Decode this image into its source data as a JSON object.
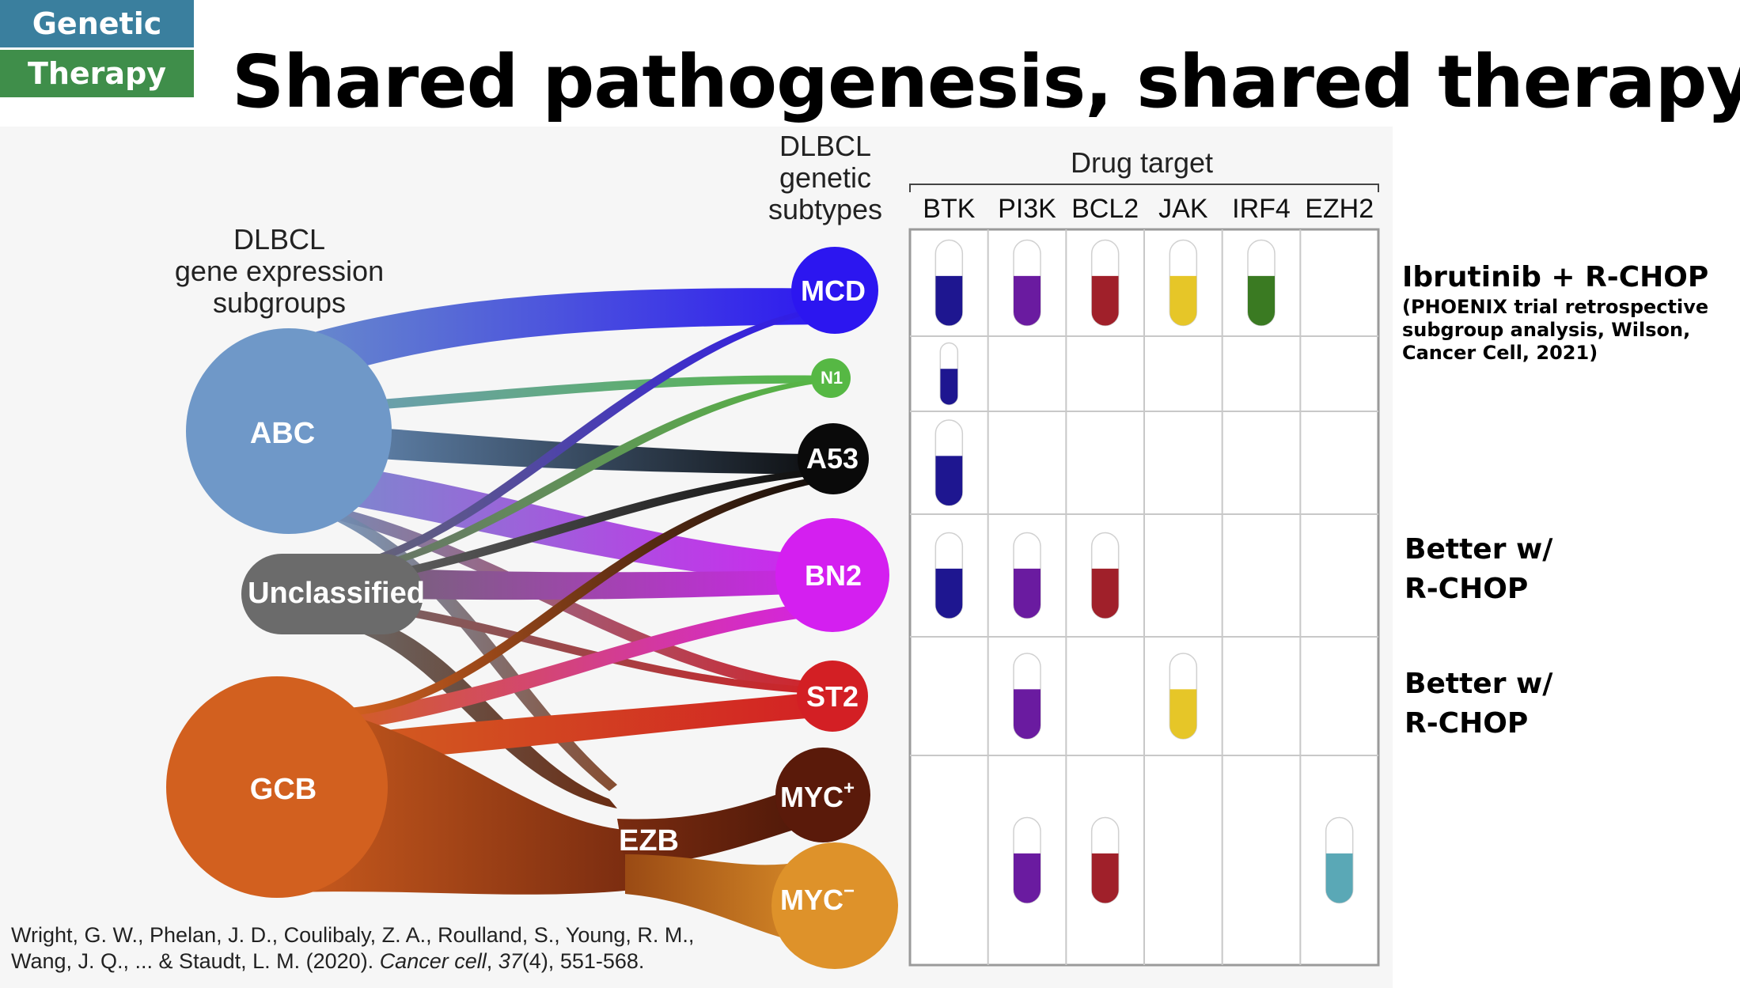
{
  "header": {
    "tag_line1": "Genetic",
    "tag_line2": "Therapy",
    "title": "Shared pathogenesis, shared therapy"
  },
  "diagram": {
    "left_heading": [
      "DLBCL",
      "gene expression",
      "subgroups"
    ],
    "middle_heading": [
      "DLBCL",
      "genetic",
      "subtypes"
    ],
    "table_heading": "Drug target",
    "expression_groups": [
      {
        "label": "ABC",
        "color": "#6f98c8"
      },
      {
        "label": "Unclassified",
        "color": "#6b6b6b"
      },
      {
        "label": "GCB",
        "color": "#d2601f"
      }
    ],
    "genetic_subtypes": [
      {
        "label": "MCD",
        "color": "#2c16f0"
      },
      {
        "label": "N1",
        "color": "#56b844"
      },
      {
        "label": "A53",
        "color": "#0a0a0a"
      },
      {
        "label": "BN2",
        "color": "#d41ff0"
      },
      {
        "label": "ST2",
        "color": "#d31f24"
      },
      {
        "label": "MYC",
        "sup": "+",
        "color": "#5a1a0a"
      },
      {
        "label": "MYC",
        "sup": "−",
        "color": "#de922a"
      }
    ],
    "ezb_label": "EZB",
    "drug_targets": [
      {
        "label": "BTK",
        "color": "#1e1690"
      },
      {
        "label": "PI3K",
        "color": "#6a1ba0"
      },
      {
        "label": "BCL2",
        "color": "#a0202a"
      },
      {
        "label": "JAK",
        "color": "#e6c628"
      },
      {
        "label": "IRF4",
        "color": "#3a7a22"
      },
      {
        "label": "EZH2",
        "color": "#5aa8b6"
      }
    ],
    "capsule_matrix": [
      [
        true,
        true,
        true,
        true,
        true,
        false
      ],
      [
        true,
        false,
        false,
        false,
        false,
        false
      ],
      [
        true,
        false,
        false,
        false,
        false,
        false
      ],
      [
        true,
        true,
        true,
        false,
        false,
        false
      ],
      [
        false,
        true,
        false,
        true,
        false,
        false
      ],
      [
        false,
        true,
        true,
        false,
        false,
        true
      ]
    ]
  },
  "annotations": {
    "mcd_title": "Ibrutinib + R-CHOP",
    "mcd_detail": [
      "(PHOENIX trial retrospective",
      "subgroup analysis, Wilson,",
      "Cancer Cell, 2021)"
    ],
    "bn2_note": [
      "Better w/",
      "R-CHOP"
    ],
    "st2_note": [
      "Better w/",
      "R-CHOP"
    ]
  },
  "citation": {
    "line1": "Wright, G. W., Phelan, J. D., Coulibaly, Z. A., Roulland, S., Young, R. M.,",
    "line2_pre": "Wang, J. Q., ... & Staudt, L. M. (2020). ",
    "journal": "Cancer cell",
    "sep": ", ",
    "volume": "37",
    "tail": "(4), 551-568."
  }
}
